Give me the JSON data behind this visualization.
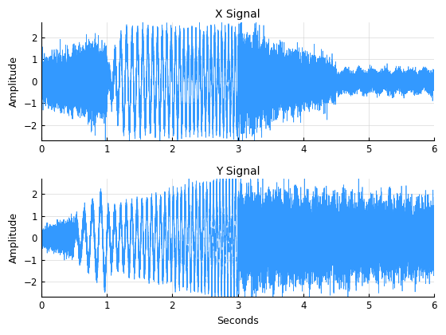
{
  "title1": "X Signal",
  "title2": "Y Signal",
  "xlabel": "Seconds",
  "ylabel": "Amplitude",
  "xlim": [
    0,
    6
  ],
  "line_color": "#3399FF",
  "line_width": 0.5,
  "fs": 10000,
  "duration": 6.0,
  "figsize": [
    5.6,
    4.2
  ],
  "dpi": 100,
  "yticks": [
    -2,
    -1,
    0,
    1,
    2
  ],
  "xticks": [
    0,
    1,
    2,
    3,
    4,
    5,
    6
  ]
}
